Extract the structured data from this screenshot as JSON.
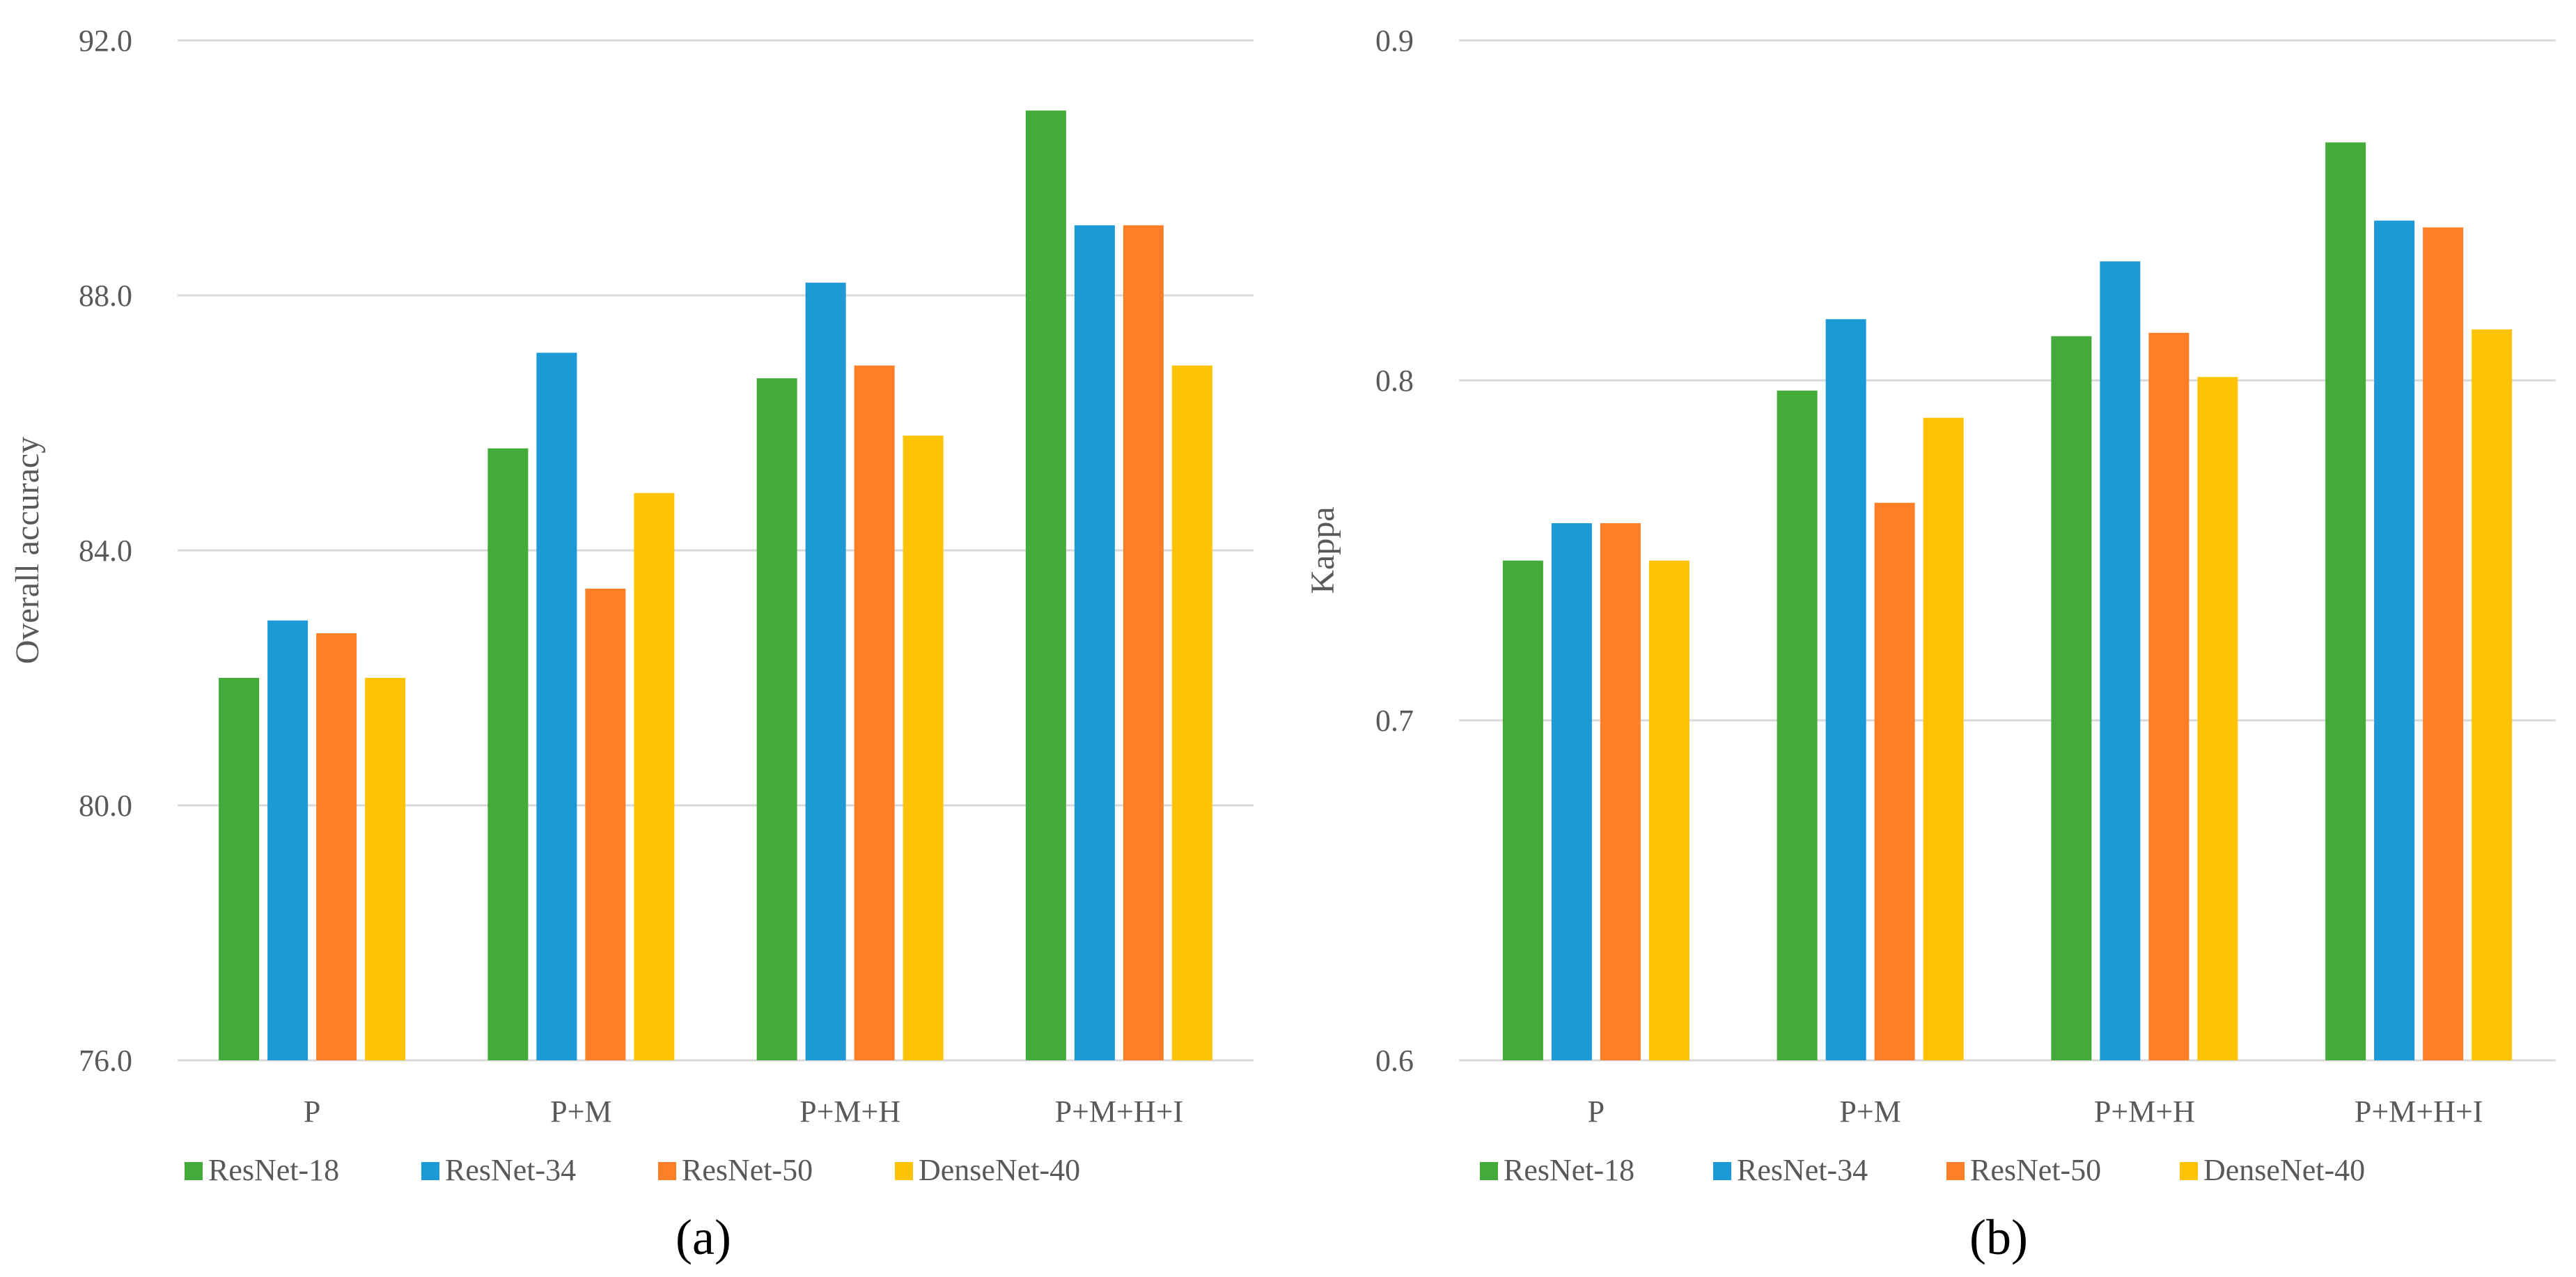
{
  "chart_data": [
    {
      "type": "bar",
      "panel_label": "(a)",
      "ylabel": "Overall accuracy",
      "xlabel": "",
      "ylim": [
        76.0,
        92.0
      ],
      "yticks": [
        76.0,
        80.0,
        84.0,
        88.0,
        92.0
      ],
      "ytick_labels": [
        "76.0",
        "80.0",
        "84.0",
        "88.0",
        "92.0"
      ],
      "grid": true,
      "legend": "bottom",
      "categories": [
        "P",
        "P+M",
        "P+M+H",
        "P+M+H+I"
      ],
      "series": [
        {
          "name": "ResNet-18",
          "color": "#43ab39",
          "values": [
            82.0,
            85.6,
            86.7,
            90.9
          ]
        },
        {
          "name": "ResNet-34",
          "color": "#1b9ad6",
          "values": [
            82.9,
            87.1,
            88.2,
            89.1
          ]
        },
        {
          "name": "ResNet-50",
          "color": "#fe7f27",
          "values": [
            82.7,
            83.4,
            86.9,
            89.1
          ]
        },
        {
          "name": "DenseNet-40",
          "color": "#fec302",
          "values": [
            82.0,
            84.9,
            85.8,
            86.9
          ]
        }
      ]
    },
    {
      "type": "bar",
      "panel_label": "(b)",
      "ylabel": "Kappa",
      "xlabel": "",
      "ylim": [
        0.6,
        0.9
      ],
      "yticks": [
        0.6,
        0.7,
        0.8,
        0.9
      ],
      "ytick_labels": [
        "0.6",
        "0.7",
        "0.8",
        "0.9"
      ],
      "grid": true,
      "legend": "bottom",
      "categories": [
        "P",
        "P+M",
        "P+M+H",
        "P+M+H+I"
      ],
      "series": [
        {
          "name": "ResNet-18",
          "color": "#43ab39",
          "values": [
            0.747,
            0.797,
            0.813,
            0.87
          ]
        },
        {
          "name": "ResNet-34",
          "color": "#1b9ad6",
          "values": [
            0.758,
            0.818,
            0.835,
            0.847
          ]
        },
        {
          "name": "ResNet-50",
          "color": "#fe7f27",
          "values": [
            0.758,
            0.764,
            0.814,
            0.845
          ]
        },
        {
          "name": "DenseNet-40",
          "color": "#fec302",
          "values": [
            0.747,
            0.789,
            0.801,
            0.815
          ]
        }
      ]
    }
  ]
}
